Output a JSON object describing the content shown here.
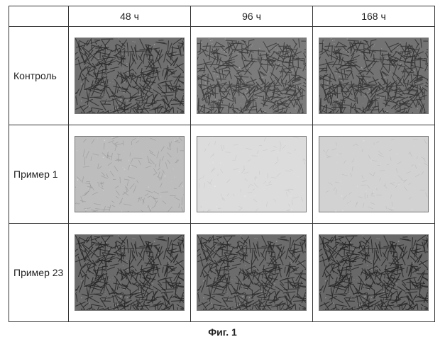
{
  "figure": {
    "caption": "Фиг. 1",
    "column_headers": [
      "48 ч",
      "96 ч",
      "168 ч"
    ],
    "rows": [
      {
        "label": "Контроль",
        "cells": [
          {
            "density": "dense",
            "bg": "#6f6f6f",
            "fg": "#2c2c2c"
          },
          {
            "density": "dense",
            "bg": "#7b7b7b",
            "fg": "#3a3a3a"
          },
          {
            "density": "dense",
            "bg": "#737373",
            "fg": "#313131"
          }
        ]
      },
      {
        "label": "Пример 1",
        "cells": [
          {
            "density": "sparse",
            "bg": "#bdbdbd",
            "fg": "#8c8c8c"
          },
          {
            "density": "vsparse",
            "bg": "#dcdcdc",
            "fg": "#b4b4b4"
          },
          {
            "density": "vsparse",
            "bg": "#d2d2d2",
            "fg": "#a7a7a7"
          }
        ]
      },
      {
        "label": "Пример 23",
        "cells": [
          {
            "density": "dense",
            "bg": "#6a6a6a",
            "fg": "#262626"
          },
          {
            "density": "dense",
            "bg": "#6c6c6c",
            "fg": "#2a2a2a"
          },
          {
            "density": "dense",
            "bg": "#686868",
            "fg": "#242424"
          }
        ]
      }
    ]
  },
  "style": {
    "cell_border_color": "#777777",
    "table_border_color": "#333333",
    "font_size_header": 14,
    "font_size_caption": 14,
    "micrograph_w": 155,
    "micrograph_h": 108
  }
}
